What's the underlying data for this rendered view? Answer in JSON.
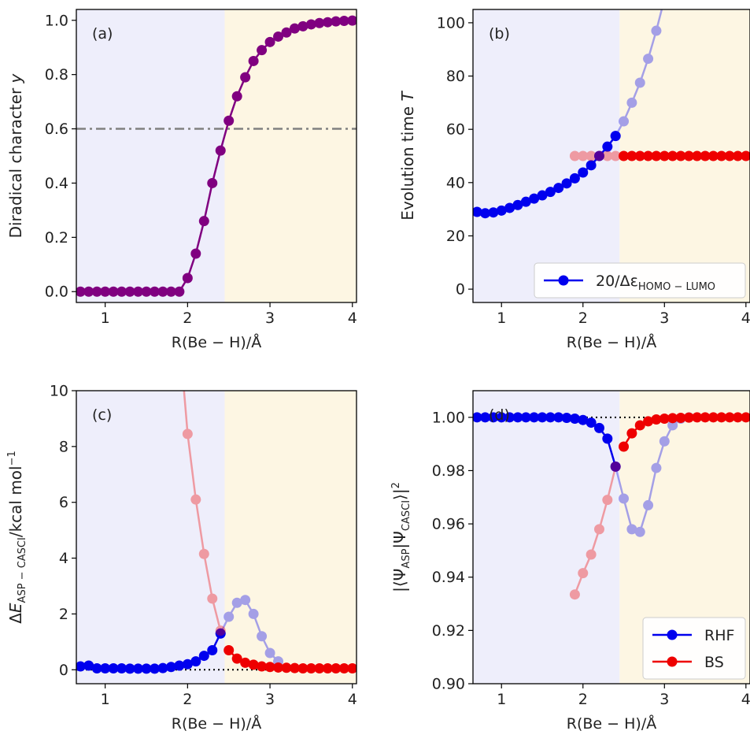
{
  "xlabel": "R(Be − H)/Å",
  "colors": {
    "left_shade": "#eeeefb",
    "right_shade": "#fdf6e3",
    "purple": "#800080",
    "blue": "#0000ee",
    "red": "#ee0000",
    "grey_line": "#808080",
    "dotted_line": "#000000"
  },
  "chart_data": [
    {
      "type": "line",
      "panel_label": "(a)",
      "ylabel": "Diradical character y",
      "xlim": [
        0.65,
        4.05
      ],
      "ylim": [
        -0.04,
        1.04
      ],
      "xticks": [
        1,
        2,
        3,
        4
      ],
      "yticks": [
        0.0,
        0.2,
        0.4,
        0.6,
        0.8,
        1.0
      ],
      "ytick_labels": [
        "0.0",
        "0.2",
        "0.4",
        "0.6",
        "0.8",
        "1.0"
      ],
      "shade_split": 2.45,
      "hlines": [
        {
          "y": 0.6,
          "style": "dashdot",
          "color": "#808080"
        }
      ],
      "series": [
        {
          "color": "#800080",
          "alpha": 1,
          "x": [
            0.7,
            0.8,
            0.9,
            1.0,
            1.1,
            1.2,
            1.3,
            1.4,
            1.5,
            1.6,
            1.7,
            1.8,
            1.9,
            2.0,
            2.1,
            2.2,
            2.3,
            2.4,
            2.5,
            2.6,
            2.7,
            2.8,
            2.9,
            3.0,
            3.1,
            3.2,
            3.3,
            3.4,
            3.5,
            3.6,
            3.7,
            3.8,
            3.9,
            4.0
          ],
          "y": [
            0,
            0,
            0,
            0,
            0,
            0,
            0,
            0,
            0,
            0,
            0,
            0,
            0,
            0.05,
            0.14,
            0.26,
            0.4,
            0.52,
            0.63,
            0.72,
            0.79,
            0.85,
            0.89,
            0.92,
            0.94,
            0.955,
            0.97,
            0.978,
            0.985,
            0.99,
            0.993,
            0.996,
            0.998,
            0.999
          ]
        }
      ]
    },
    {
      "type": "line",
      "panel_label": "(b)",
      "ylabel": "Evolution time T",
      "xlim": [
        0.65,
        4.05
      ],
      "ylim": [
        -5,
        105
      ],
      "xticks": [
        1,
        2,
        3,
        4
      ],
      "yticks": [
        0,
        20,
        40,
        60,
        80,
        100
      ],
      "ytick_labels": [
        "0",
        "20",
        "40",
        "60",
        "80",
        "100"
      ],
      "shade_split": 2.45,
      "legend": {
        "position": "bottom-right",
        "entries": [
          {
            "label": "20/Δε",
            "subscript": "HOMO − LUMO",
            "color": "#0000ee"
          }
        ]
      },
      "series": [
        {
          "color": "#0000ee",
          "alpha": 1,
          "x": [
            0.7,
            0.8,
            0.9,
            1.0,
            1.1,
            1.2,
            1.3,
            1.4,
            1.5,
            1.6,
            1.7,
            1.8,
            1.9,
            2.0,
            2.1,
            2.2,
            2.3,
            2.4
          ],
          "y": [
            29.0,
            28.5,
            28.8,
            29.5,
            30.5,
            31.6,
            32.8,
            34.0,
            35.2,
            36.5,
            38.0,
            39.7,
            41.6,
            43.8,
            46.5,
            50.0,
            53.5,
            57.5
          ]
        },
        {
          "color": "#0000ee",
          "alpha": 0.35,
          "x": [
            2.4,
            2.5,
            2.6,
            2.7,
            2.8,
            2.9,
            3.0
          ],
          "y": [
            57.5,
            63.0,
            70.0,
            77.5,
            86.5,
            97.0,
            109.0
          ]
        },
        {
          "color": "#ee0000",
          "alpha": 0.35,
          "x": [
            1.9,
            2.0,
            2.1,
            2.2,
            2.3,
            2.4
          ],
          "y": [
            50,
            50,
            50,
            50,
            50,
            50
          ]
        },
        {
          "color": "#ee0000",
          "alpha": 1,
          "x": [
            2.5,
            2.6,
            2.7,
            2.8,
            2.9,
            3.0,
            3.1,
            3.2,
            3.3,
            3.4,
            3.5,
            3.6,
            3.7,
            3.8,
            3.9,
            4.0
          ],
          "y": [
            50,
            50,
            50,
            50,
            50,
            50,
            50,
            50,
            50,
            50,
            50,
            50,
            50,
            50,
            50,
            50
          ]
        }
      ]
    },
    {
      "type": "line",
      "panel_label": "(c)",
      "ylabel": "ΔE",
      "ylabel_sub": "ASP − CASCI",
      "ylabel_tail": "/kcal mol",
      "ylabel_sup": "−1",
      "xlim": [
        0.65,
        4.05
      ],
      "ylim": [
        -0.5,
        10
      ],
      "xticks": [
        1,
        2,
        3,
        4
      ],
      "yticks": [
        0,
        2,
        4,
        6,
        8,
        10
      ],
      "ytick_labels": [
        "0",
        "2",
        "4",
        "6",
        "8",
        "10"
      ],
      "shade_split": 2.45,
      "hlines": [
        {
          "y": 0,
          "style": "dotted",
          "color": "#000000"
        }
      ],
      "series": [
        {
          "color": "#0000ee",
          "alpha": 1,
          "x": [
            0.7,
            0.8,
            0.9,
            1.0,
            1.1,
            1.2,
            1.3,
            1.4,
            1.5,
            1.6,
            1.7,
            1.8,
            1.9,
            2.0,
            2.1,
            2.2,
            2.3,
            2.4
          ],
          "y": [
            0.12,
            0.15,
            0.05,
            0.05,
            0.05,
            0.05,
            0.04,
            0.04,
            0.04,
            0.04,
            0.06,
            0.1,
            0.15,
            0.2,
            0.3,
            0.5,
            0.7,
            1.3
          ]
        },
        {
          "color": "#0000ee",
          "alpha": 0.35,
          "x": [
            2.4,
            2.5,
            2.6,
            2.7,
            2.8,
            2.9,
            3.0,
            3.1
          ],
          "y": [
            1.3,
            1.9,
            2.4,
            2.5,
            2.0,
            1.2,
            0.6,
            0.3
          ]
        },
        {
          "color": "#ee0000",
          "alpha": 0.35,
          "x": [
            1.9,
            2.0,
            2.1,
            2.2,
            2.3,
            2.4
          ],
          "y": [
            12.0,
            8.45,
            6.1,
            4.15,
            2.55,
            1.4
          ]
        },
        {
          "color": "#ee0000",
          "alpha": 1,
          "x": [
            2.5,
            2.6,
            2.7,
            2.8,
            2.9,
            3.0,
            3.1,
            3.2,
            3.3,
            3.4,
            3.5,
            3.6,
            3.7,
            3.8,
            3.9,
            4.0
          ],
          "y": [
            0.7,
            0.4,
            0.25,
            0.18,
            0.12,
            0.1,
            0.08,
            0.07,
            0.06,
            0.05,
            0.05,
            0.05,
            0.05,
            0.05,
            0.05,
            0.05
          ]
        }
      ]
    },
    {
      "type": "line",
      "panel_label": "(d)",
      "ylabel": "|⟨Ψ",
      "ylabel_sub1": "ASP",
      "ylabel_mid": "|Ψ",
      "ylabel_sub2": "CASCI",
      "ylabel_tail": "⟩|",
      "ylabel_sup": "2",
      "xlim": [
        0.65,
        4.05
      ],
      "ylim": [
        0.9,
        1.01
      ],
      "xticks": [
        1,
        2,
        3,
        4
      ],
      "yticks": [
        0.9,
        0.92,
        0.94,
        0.96,
        0.98,
        1.0
      ],
      "ytick_labels": [
        "0.90",
        "0.92",
        "0.94",
        "0.96",
        "0.98",
        "1.00"
      ],
      "shade_split": 2.45,
      "hlines": [
        {
          "y": 1.0,
          "style": "dotted",
          "color": "#000000"
        }
      ],
      "legend": {
        "position": "bottom-right",
        "entries": [
          {
            "label": "RHF",
            "color": "#0000ee"
          },
          {
            "label": "BS",
            "color": "#ee0000"
          }
        ]
      },
      "series": [
        {
          "name": "RHF",
          "color": "#0000ee",
          "alpha": 1,
          "x": [
            0.7,
            0.8,
            0.9,
            1.0,
            1.1,
            1.2,
            1.3,
            1.4,
            1.5,
            1.6,
            1.7,
            1.8,
            1.9,
            2.0,
            2.1,
            2.2,
            2.3,
            2.4
          ],
          "y": [
            1.0,
            1.0,
            1.0,
            1.0,
            1.0,
            1.0,
            1.0,
            1.0,
            1.0,
            1.0,
            1.0,
            0.9998,
            0.9995,
            0.999,
            0.998,
            0.996,
            0.992,
            0.9815
          ]
        },
        {
          "color": "#0000ee",
          "alpha": 0.35,
          "x": [
            2.4,
            2.5,
            2.6,
            2.7,
            2.8,
            2.9,
            3.0,
            3.1,
            3.2,
            3.3
          ],
          "y": [
            0.9815,
            0.9695,
            0.958,
            0.957,
            0.967,
            0.981,
            0.991,
            0.997,
            0.9995,
            1.0
          ]
        },
        {
          "color": "#ee0000",
          "alpha": 0.35,
          "x": [
            1.9,
            2.0,
            2.1,
            2.2,
            2.3,
            2.4
          ],
          "y": [
            0.9335,
            0.9415,
            0.9485,
            0.958,
            0.969,
            0.9815
          ]
        },
        {
          "name": "BS",
          "color": "#ee0000",
          "alpha": 1,
          "x": [
            2.5,
            2.6,
            2.7,
            2.8,
            2.9,
            3.0,
            3.1,
            3.2,
            3.3,
            3.4,
            3.5,
            3.6,
            3.7,
            3.8,
            3.9,
            4.0
          ],
          "y": [
            0.989,
            0.994,
            0.997,
            0.9985,
            0.9992,
            0.9995,
            0.9997,
            0.9998,
            0.9999,
            1.0,
            1.0,
            1.0,
            1.0,
            1.0,
            1.0,
            1.0
          ]
        }
      ]
    }
  ]
}
